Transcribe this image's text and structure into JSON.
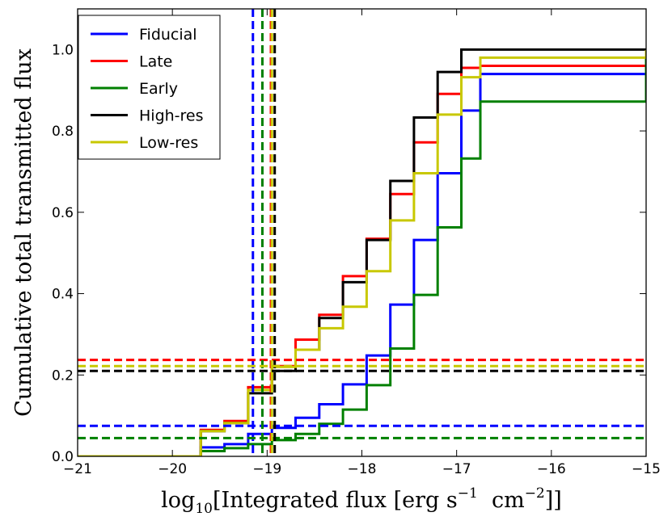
{
  "chart_data": {
    "type": "line",
    "subtype": "cumulative-step",
    "xlabel": {
      "prefix": "log",
      "sub": "10",
      "text_a": "[Integrated flux [erg s",
      "sup_a": "−1",
      "text_b": "  cm",
      "sup_b": "−2",
      "text_c": "]]"
    },
    "ylabel": "Cumulative total transmitted flux",
    "xlim": [
      -21,
      -15
    ],
    "ylim": [
      0,
      1.1
    ],
    "xticks": [
      {
        "value": -21,
        "label": "−21"
      },
      {
        "value": -20,
        "label": "−20"
      },
      {
        "value": -19,
        "label": "−19"
      },
      {
        "value": -18,
        "label": "−18"
      },
      {
        "value": -17,
        "label": "−17"
      },
      {
        "value": -16,
        "label": "−16"
      },
      {
        "value": -15,
        "label": "−15"
      }
    ],
    "yticks": [
      {
        "value": 0.0,
        "label": "0.0"
      },
      {
        "value": 0.2,
        "label": "0.2"
      },
      {
        "value": 0.4,
        "label": "0.4"
      },
      {
        "value": 0.6,
        "label": "0.6"
      },
      {
        "value": 0.8,
        "label": "0.8"
      },
      {
        "value": 1.0,
        "label": "1.0"
      }
    ],
    "grid": false,
    "legend_position": "top-left",
    "bin_edges": [
      -21.0,
      -19.7,
      -19.45,
      -19.2,
      -18.95,
      -18.7,
      -18.45,
      -18.2,
      -17.95,
      -17.7,
      -17.45,
      -17.2,
      -16.95,
      -16.75,
      -15.0
    ],
    "series": [
      {
        "name": "Fiducial",
        "color": "#0000ff",
        "values": [
          0.0,
          0.022,
          0.03,
          0.055,
          0.07,
          0.095,
          0.128,
          0.177,
          0.248,
          0.373,
          0.532,
          0.696,
          0.85,
          0.94,
          1.0
        ],
        "threshold_x": -19.15,
        "threshold_y": 0.075
      },
      {
        "name": "Late",
        "color": "#ff0000",
        "values": [
          0.0,
          0.065,
          0.087,
          0.17,
          0.222,
          0.287,
          0.348,
          0.443,
          0.535,
          0.645,
          0.772,
          0.891,
          0.955,
          0.96,
          1.0
        ],
        "threshold_x": -18.96,
        "threshold_y": 0.237
      },
      {
        "name": "Early",
        "color": "#008000",
        "values": [
          0.0,
          0.013,
          0.02,
          0.03,
          0.04,
          0.055,
          0.08,
          0.115,
          0.175,
          0.265,
          0.397,
          0.563,
          0.732,
          0.872,
          1.0
        ],
        "threshold_x": -19.05,
        "threshold_y": 0.045
      },
      {
        "name": "High-res",
        "color": "#000000",
        "values": [
          0.0,
          0.062,
          0.082,
          0.155,
          0.21,
          0.262,
          0.34,
          0.428,
          0.532,
          0.677,
          0.833,
          0.945,
          1.0,
          1.0,
          1.0
        ],
        "threshold_x": -18.92,
        "threshold_y": 0.21
      },
      {
        "name": "Low-res",
        "color": "#c8c800",
        "values": [
          0.0,
          0.062,
          0.082,
          0.163,
          0.22,
          0.262,
          0.315,
          0.368,
          0.455,
          0.58,
          0.696,
          0.84,
          0.932,
          0.98,
          1.0
        ],
        "threshold_x": -18.95,
        "threshold_y": 0.222
      }
    ]
  }
}
